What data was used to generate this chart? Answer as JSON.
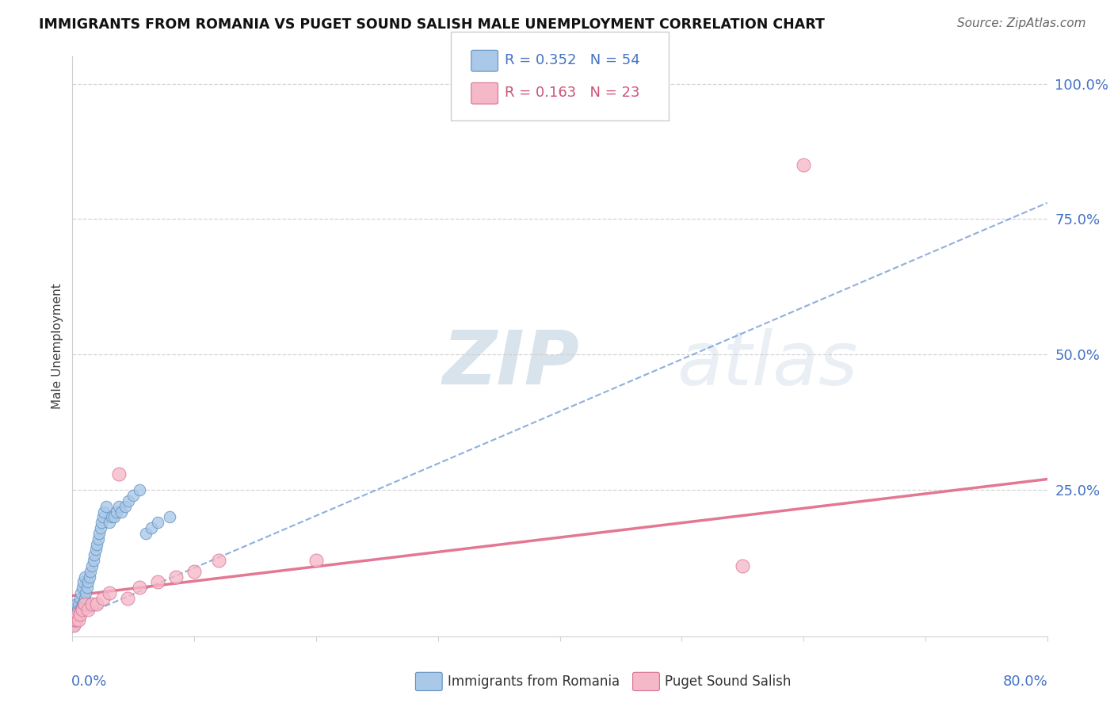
{
  "title": "IMMIGRANTS FROM ROMANIA VS PUGET SOUND SALISH MALE UNEMPLOYMENT CORRELATION CHART",
  "source": "Source: ZipAtlas.com",
  "xlim": [
    0.0,
    0.8
  ],
  "ylim": [
    -0.02,
    1.05
  ],
  "ylabel_ticks": [
    0.25,
    0.5,
    0.75,
    1.0
  ],
  "ylabel_labels": [
    "25.0%",
    "50.0%",
    "75.0%",
    "100.0%"
  ],
  "legend_blue_r": "R = 0.352",
  "legend_blue_n": "N = 54",
  "legend_pink_r": "R = 0.163",
  "legend_pink_n": "N = 23",
  "legend_label_blue": "Immigrants from Romania",
  "legend_label_pink": "Puget Sound Salish",
  "blue_color": "#aac8e8",
  "blue_edge": "#6090c0",
  "pink_color": "#f5b8c8",
  "pink_edge": "#d87090",
  "trendline_blue_color": "#5585c8",
  "trendline_blue_solid_color": "#2255aa",
  "trendline_pink_color": "#e06888",
  "watermark_color": "#d5e8f5",
  "grid_color": "#d0d0d0",
  "background_color": "#ffffff",
  "title_color": "#111111",
  "source_color": "#666666",
  "axis_label_color": "#4472c4",
  "ylabel_label": "Male Unemployment",
  "blue_x": [
    0.001,
    0.001,
    0.001,
    0.002,
    0.002,
    0.002,
    0.003,
    0.003,
    0.003,
    0.004,
    0.004,
    0.005,
    0.005,
    0.006,
    0.006,
    0.007,
    0.007,
    0.008,
    0.008,
    0.009,
    0.009,
    0.01,
    0.01,
    0.011,
    0.012,
    0.013,
    0.014,
    0.015,
    0.016,
    0.017,
    0.018,
    0.019,
    0.02,
    0.021,
    0.022,
    0.023,
    0.024,
    0.025,
    0.026,
    0.028,
    0.03,
    0.032,
    0.034,
    0.036,
    0.038,
    0.04,
    0.043,
    0.046,
    0.05,
    0.055,
    0.06,
    0.065,
    0.07,
    0.08
  ],
  "blue_y": [
    0.0,
    0.01,
    0.02,
    0.01,
    0.02,
    0.03,
    0.01,
    0.02,
    0.04,
    0.02,
    0.03,
    0.02,
    0.04,
    0.03,
    0.05,
    0.03,
    0.06,
    0.04,
    0.07,
    0.04,
    0.08,
    0.05,
    0.09,
    0.06,
    0.07,
    0.08,
    0.09,
    0.1,
    0.11,
    0.12,
    0.13,
    0.14,
    0.15,
    0.16,
    0.17,
    0.18,
    0.19,
    0.2,
    0.21,
    0.22,
    0.19,
    0.2,
    0.2,
    0.21,
    0.22,
    0.21,
    0.22,
    0.23,
    0.24,
    0.25,
    0.17,
    0.18,
    0.19,
    0.2
  ],
  "pink_x": [
    0.001,
    0.002,
    0.003,
    0.004,
    0.005,
    0.006,
    0.008,
    0.01,
    0.013,
    0.016,
    0.02,
    0.025,
    0.03,
    0.038,
    0.045,
    0.055,
    0.07,
    0.085,
    0.1,
    0.12,
    0.2,
    0.55,
    0.6
  ],
  "pink_y": [
    0.0,
    0.01,
    0.01,
    0.02,
    0.01,
    0.02,
    0.03,
    0.04,
    0.03,
    0.04,
    0.04,
    0.05,
    0.06,
    0.28,
    0.05,
    0.07,
    0.08,
    0.09,
    0.1,
    0.12,
    0.12,
    0.11,
    0.85
  ],
  "trendline_blue_x0": 0.0,
  "trendline_blue_y0": 0.01,
  "trendline_blue_x1": 0.8,
  "trendline_blue_y1": 0.78,
  "trendline_pink_x0": 0.0,
  "trendline_pink_y0": 0.055,
  "trendline_pink_x1": 0.8,
  "trendline_pink_y1": 0.27,
  "xtick_positions": [
    0.0,
    0.1,
    0.2,
    0.3,
    0.4,
    0.5,
    0.6,
    0.7,
    0.8
  ]
}
